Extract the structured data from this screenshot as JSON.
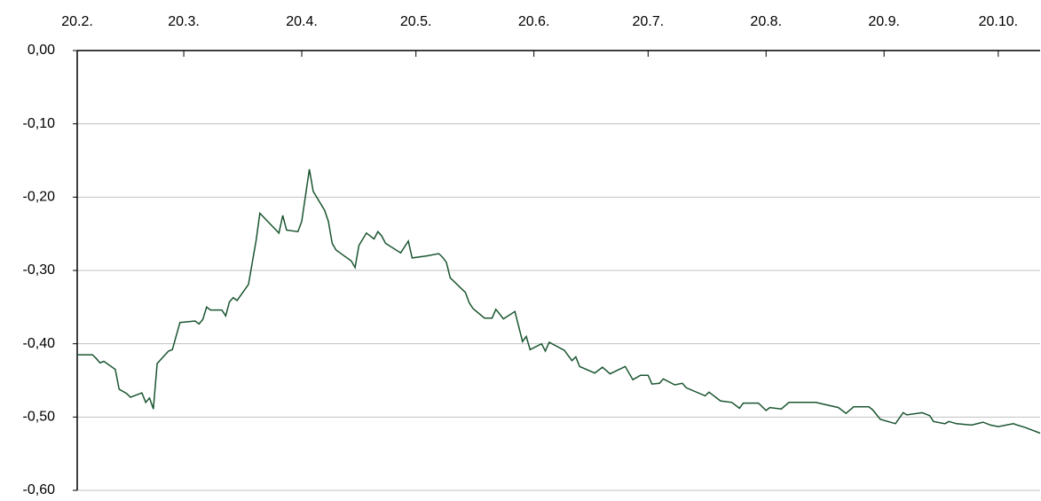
{
  "chart_data": {
    "type": "line",
    "color": "#1a5530",
    "grid": true,
    "xlim": [
      "20.2.",
      "31.10."
    ],
    "xticks": [
      "20.2.",
      "20.3.",
      "20.4.",
      "20.5.",
      "20.6.",
      "20.7.",
      "20.8.",
      "20.9.",
      "20.10."
    ],
    "ylim": [
      -0.6,
      0
    ],
    "yticks": [
      {
        "value": 0,
        "label": "0,00"
      },
      {
        "value": -0.1,
        "label": "-0,10"
      },
      {
        "value": -0.2,
        "label": "-0,20"
      },
      {
        "value": -0.3,
        "label": "-0,30"
      },
      {
        "value": -0.4,
        "label": "-0,40"
      },
      {
        "value": -0.5,
        "label": "-0,50"
      },
      {
        "value": -0.6,
        "label": "-0,60"
      }
    ],
    "x": [
      "20.2.",
      "21.2.",
      "24.2.",
      "25.2.",
      "26.2.",
      "27.2.",
      "2.3.",
      "3.3.",
      "5.3.",
      "6.3.",
      "9.3.",
      "10.3.",
      "11.3.",
      "12.3.",
      "13.3.",
      "16.3.",
      "17.3.",
      "19.3.",
      "23.3.",
      "24.3.",
      "25.3.",
      "26.3.",
      "27.3.",
      "30.3.",
      "31.3.",
      "1.4.",
      "2.4.",
      "3.4.",
      "6.4.",
      "8.4.",
      "9.4.",
      "14.4.",
      "15.4.",
      "16.4.",
      "19.4.",
      "20.4.",
      "22.4.",
      "23.4.",
      "26.4.",
      "27.4.",
      "28.4.",
      "29.4.",
      "3.5.",
      "4.5.",
      "5.5.",
      "7.5.",
      "9.5.",
      "10.5.",
      "11.5.",
      "12.5.",
      "16.5.",
      "18.5.",
      "19.5.",
      "23.5.",
      "26.5.",
      "27.5.",
      "28.5.",
      "29.5.",
      "2.6.",
      "3.6.",
      "4.6.",
      "7.6.",
      "9.6.",
      "10.6.",
      "12.6.",
      "15.6.",
      "17.6.",
      "18.6.",
      "19.6.",
      "22.6.",
      "23.6.",
      "24.6.",
      "28.6.",
      "30.6.",
      "1.7.",
      "2.7.",
      "6.7.",
      "8.7.",
      "10.7.",
      "14.7.",
      "16.7.",
      "18.7.",
      "20.7.",
      "21.7.",
      "23.7.",
      "24.7.",
      "27.7.",
      "29.7.",
      "30.7.",
      "4.8.",
      "5.8.",
      "8.8.",
      "11.8.",
      "13.8.",
      "14.8.",
      "18.8.",
      "20.8.",
      "21.8.",
      "24.8.",
      "26.8.",
      "2.9.",
      "8.9.",
      "10.9.",
      "12.9.",
      "16.9.",
      "17.9.",
      "19.9.",
      "23.9.",
      "25.9.",
      "26.9.",
      "30.9.",
      "2.10.",
      "3.10.",
      "6.10.",
      "7.10.",
      "9.10.",
      "13.10.",
      "16.10.",
      "18.10.",
      "20.10.",
      "24.10.",
      "25.10.",
      "27.10.",
      "29.10.",
      "31.10."
    ],
    "values": [
      -0.415,
      -0.415,
      -0.415,
      -0.42,
      -0.426,
      -0.424,
      -0.435,
      -0.462,
      -0.468,
      -0.473,
      -0.467,
      -0.48,
      -0.474,
      -0.489,
      -0.427,
      -0.41,
      -0.408,
      -0.371,
      -0.369,
      -0.373,
      -0.367,
      -0.35,
      -0.354,
      -0.354,
      -0.362,
      -0.343,
      -0.337,
      -0.341,
      -0.319,
      -0.259,
      -0.222,
      -0.249,
      -0.225,
      -0.245,
      -0.247,
      -0.233,
      -0.162,
      -0.192,
      -0.218,
      -0.233,
      -0.263,
      -0.272,
      -0.287,
      -0.296,
      -0.266,
      -0.249,
      -0.257,
      -0.247,
      -0.253,
      -0.263,
      -0.276,
      -0.26,
      -0.283,
      -0.28,
      -0.277,
      -0.282,
      -0.289,
      -0.31,
      -0.33,
      -0.344,
      -0.352,
      -0.365,
      -0.365,
      -0.353,
      -0.366,
      -0.356,
      -0.397,
      -0.39,
      -0.408,
      -0.4,
      -0.41,
      -0.398,
      -0.409,
      -0.423,
      -0.418,
      -0.431,
      -0.44,
      -0.432,
      -0.441,
      -0.431,
      -0.449,
      -0.443,
      -0.443,
      -0.455,
      -0.454,
      -0.448,
      -0.456,
      -0.454,
      -0.46,
      -0.471,
      -0.466,
      -0.478,
      -0.48,
      -0.488,
      -0.481,
      -0.481,
      -0.491,
      -0.487,
      -0.489,
      -0.48,
      -0.48,
      -0.487,
      -0.495,
      -0.486,
      -0.486,
      -0.49,
      -0.503,
      -0.509,
      -0.494,
      -0.497,
      -0.494,
      -0.498,
      -0.506,
      -0.509,
      -0.506,
      -0.509,
      -0.511,
      -0.507,
      -0.511,
      -0.513,
      -0.509,
      -0.511,
      -0.514,
      -0.518,
      -0.522
    ]
  }
}
